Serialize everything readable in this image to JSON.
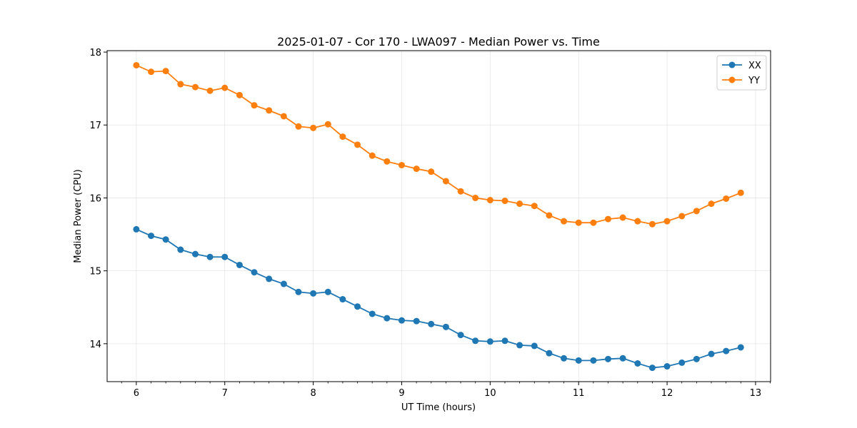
{
  "chart_data": {
    "type": "line",
    "title": "2025-01-07 - Cor 170 - LWA097 - Median Power vs. Time",
    "xlabel": "UT Time (hours)",
    "ylabel": "Median Power (CPU)",
    "xlim": [
      5.67,
      13.17
    ],
    "ylim": [
      13.48,
      18.02
    ],
    "xticks": [
      6,
      7,
      8,
      9,
      10,
      11,
      12,
      13
    ],
    "yticks": [
      14,
      15,
      16,
      17,
      18
    ],
    "grid": true,
    "legend_position": "top-right",
    "x": [
      6.0,
      6.167,
      6.333,
      6.5,
      6.667,
      6.833,
      7.0,
      7.167,
      7.333,
      7.5,
      7.667,
      7.833,
      8.0,
      8.167,
      8.333,
      8.5,
      8.667,
      8.833,
      9.0,
      9.167,
      9.333,
      9.5,
      9.667,
      9.833,
      10.0,
      10.167,
      10.333,
      10.5,
      10.667,
      10.833,
      11.0,
      11.167,
      11.333,
      11.5,
      11.667,
      11.833,
      12.0,
      12.167,
      12.333,
      12.5,
      12.667,
      12.833
    ],
    "series": [
      {
        "name": "XX",
        "color": "#1f77b4",
        "values": [
          15.57,
          15.48,
          15.43,
          15.29,
          15.23,
          15.19,
          15.19,
          15.08,
          14.98,
          14.89,
          14.82,
          14.71,
          14.69,
          14.71,
          14.61,
          14.51,
          14.41,
          14.35,
          14.32,
          14.31,
          14.27,
          14.23,
          14.12,
          14.04,
          14.03,
          14.04,
          13.98,
          13.97,
          13.87,
          13.8,
          13.77,
          13.77,
          13.79,
          13.8,
          13.73,
          13.67,
          13.69,
          13.74,
          13.79,
          13.86,
          13.9,
          13.95
        ]
      },
      {
        "name": "YY",
        "color": "#ff7f0e",
        "values": [
          17.82,
          17.73,
          17.74,
          17.56,
          17.52,
          17.47,
          17.51,
          17.41,
          17.27,
          17.2,
          17.12,
          16.98,
          16.96,
          17.01,
          16.84,
          16.73,
          16.58,
          16.5,
          16.45,
          16.4,
          16.36,
          16.23,
          16.09,
          16.0,
          15.97,
          15.96,
          15.92,
          15.89,
          15.76,
          15.68,
          15.66,
          15.66,
          15.71,
          15.73,
          15.68,
          15.64,
          15.68,
          15.75,
          15.82,
          15.92,
          15.99,
          16.07
        ]
      }
    ]
  }
}
